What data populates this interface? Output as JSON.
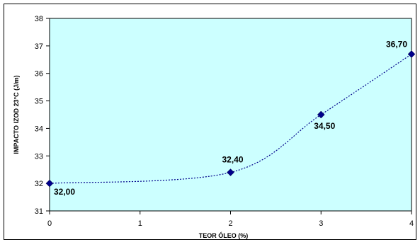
{
  "chart_data": {
    "type": "scatter",
    "xlabel": "TEOR ÓLEO (%)",
    "ylabel": "IMPACTO IZOD 23°C (J/m)",
    "xlim": [
      0,
      4
    ],
    "ylim": [
      31,
      38
    ],
    "x_ticks": [
      "0",
      "1",
      "2",
      "3",
      "4"
    ],
    "y_ticks": [
      "31",
      "32",
      "33",
      "34",
      "35",
      "36",
      "37",
      "38"
    ],
    "series": [
      {
        "points": [
          {
            "x": 0,
            "y": 32.0,
            "label": "32,00"
          },
          {
            "x": 2,
            "y": 32.4,
            "label": "32,40"
          },
          {
            "x": 3,
            "y": 34.5,
            "label": "34,50"
          },
          {
            "x": 4,
            "y": 36.7,
            "label": "36,70"
          }
        ]
      }
    ],
    "line_style": "dotted smooth",
    "marker": "diamond",
    "colors": {
      "plot_background": "#ccffff",
      "marker": "#00008b",
      "line": "#00008b",
      "frame": "#000000"
    },
    "grid": false,
    "legend": "none"
  }
}
